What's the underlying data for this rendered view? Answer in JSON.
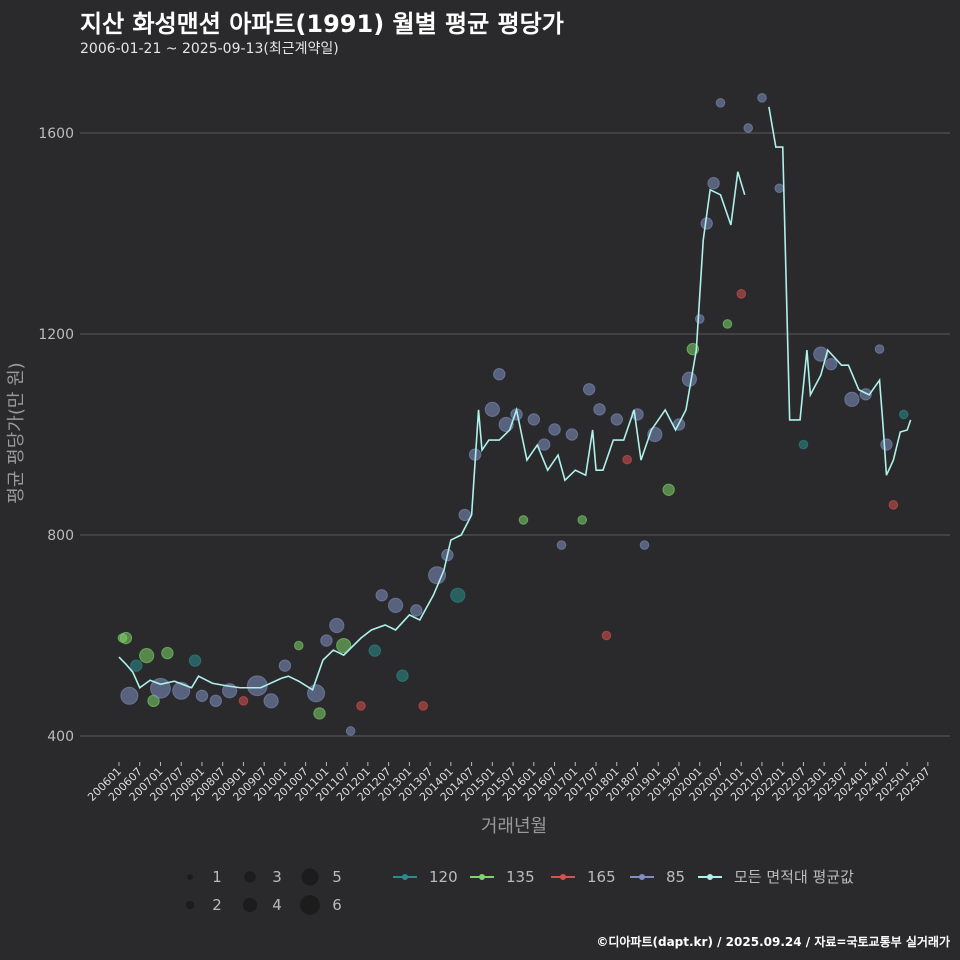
{
  "title": "지산 화성맨션 아파트(1991) 월별 평균 평당가",
  "subtitle": "2006-01-21 ~ 2025-09-13(최근계약일)",
  "footer": "©디아파트(dapt.kr) / 2025.09.24 / 자료=국토교통부 실거래가",
  "colors": {
    "120": "#2a8c8c",
    "135": "#7ed36a",
    "165": "#d95050",
    "85": "#7e8fc0",
    "avg": "#aef0ea",
    "grid": "#5a5a5a"
  },
  "chart_data": {
    "type": "scatter+line",
    "xlabel": "거래년월",
    "ylabel": "평균 평당가(만 원)",
    "ylim": [
      370,
      1700
    ],
    "yticks": [
      400,
      800,
      1200,
      1600
    ],
    "xticks": [
      "200601",
      "200607",
      "200701",
      "200707",
      "200801",
      "200807",
      "200901",
      "200907",
      "201001",
      "201007",
      "201101",
      "201107",
      "201201",
      "201207",
      "201301",
      "201307",
      "201401",
      "201407",
      "201501",
      "201507",
      "201601",
      "201607",
      "201701",
      "201707",
      "201801",
      "201807",
      "201901",
      "201907",
      "202001",
      "202007",
      "202101",
      "202107",
      "202201",
      "202207",
      "202301",
      "202307",
      "202401",
      "202407",
      "202501",
      "202507"
    ],
    "size_legend": [
      "1",
      "2",
      "3",
      "4",
      "5",
      "6"
    ],
    "series_legend": [
      "120",
      "135",
      "165",
      "85",
      "모든 면적대 평균값"
    ],
    "avg_line": {
      "name": "모든 면적대 평균값",
      "points": [
        [
          0,
          557
        ],
        [
          2,
          543
        ],
        [
          4,
          527
        ],
        [
          6,
          496
        ],
        [
          9,
          511
        ],
        [
          12,
          503
        ],
        [
          16,
          509
        ],
        [
          21,
          496
        ],
        [
          23,
          519
        ],
        [
          27,
          505
        ],
        [
          31,
          500
        ],
        [
          35,
          496
        ],
        [
          41,
          496
        ],
        [
          47,
          515
        ],
        [
          49,
          519
        ],
        [
          52,
          509
        ],
        [
          56,
          492
        ],
        [
          59,
          551
        ],
        [
          62,
          571
        ],
        [
          65,
          561
        ],
        [
          70,
          595
        ],
        [
          73,
          611
        ],
        [
          77,
          621
        ],
        [
          80,
          611
        ],
        [
          84,
          641
        ],
        [
          87,
          631
        ],
        [
          91,
          681
        ],
        [
          94,
          730
        ],
        [
          96,
          790
        ],
        [
          99,
          800
        ],
        [
          102,
          840
        ],
        [
          104,
          1049
        ],
        [
          105,
          969
        ],
        [
          107,
          989
        ],
        [
          110,
          989
        ],
        [
          113,
          1009
        ],
        [
          115,
          1049
        ],
        [
          118,
          949
        ],
        [
          121,
          979
        ],
        [
          124,
          929
        ],
        [
          127,
          959
        ],
        [
          129,
          909
        ],
        [
          132,
          929
        ],
        [
          135,
          919
        ],
        [
          137,
          1009
        ],
        [
          138,
          929
        ],
        [
          140,
          929
        ],
        [
          143,
          989
        ],
        [
          146,
          989
        ],
        [
          149,
          1049
        ],
        [
          151,
          949
        ],
        [
          154,
          1009
        ],
        [
          158,
          1049
        ],
        [
          161,
          1009
        ],
        [
          164,
          1049
        ],
        [
          167,
          1168
        ],
        [
          169,
          1387
        ],
        [
          171,
          1487
        ],
        [
          174,
          1477
        ],
        [
          177,
          1417
        ],
        [
          179,
          1523
        ],
        [
          181,
          1477
        ],
        null,
        [
          188,
          1652
        ],
        [
          190,
          1572
        ],
        [
          192,
          1572
        ],
        [
          194,
          1029
        ],
        [
          197,
          1029
        ],
        [
          199,
          1168
        ],
        [
          200,
          1079
        ],
        [
          203,
          1118
        ],
        [
          205,
          1168
        ],
        [
          209,
          1138
        ],
        [
          211,
          1138
        ],
        [
          214,
          1089
        ],
        [
          217,
          1079
        ],
        [
          220,
          1108
        ],
        [
          221,
          1019
        ],
        [
          222,
          919
        ],
        [
          224,
          949
        ],
        [
          226,
          1005
        ],
        [
          228,
          1009
        ],
        [
          229,
          1029
        ]
      ]
    },
    "points": [
      [
        1,
        595,
        "135",
        2
      ],
      [
        2,
        595,
        "135",
        3
      ],
      [
        3,
        480,
        "85",
        5
      ],
      [
        5,
        540,
        "120",
        3
      ],
      [
        8,
        560,
        "135",
        4
      ],
      [
        10,
        470,
        "135",
        3
      ],
      [
        12,
        495,
        "85",
        6
      ],
      [
        14,
        565,
        "135",
        3
      ],
      [
        18,
        490,
        "85",
        5
      ],
      [
        22,
        550,
        "120",
        3
      ],
      [
        24,
        480,
        "85",
        3
      ],
      [
        28,
        470,
        "85",
        3
      ],
      [
        32,
        490,
        "85",
        4
      ],
      [
        36,
        470,
        "165",
        2
      ],
      [
        40,
        500,
        "85",
        6
      ],
      [
        44,
        470,
        "85",
        4
      ],
      [
        48,
        540,
        "85",
        3
      ],
      [
        52,
        580,
        "135",
        2
      ],
      [
        57,
        485,
        "85",
        5
      ],
      [
        58,
        445,
        "135",
        3
      ],
      [
        60,
        590,
        "85",
        3
      ],
      [
        63,
        620,
        "85",
        4
      ],
      [
        65,
        580,
        "135",
        4
      ],
      [
        67,
        410,
        "85",
        2
      ],
      [
        70,
        460,
        "165",
        2
      ],
      [
        74,
        570,
        "120",
        3
      ],
      [
        76,
        680,
        "85",
        3
      ],
      [
        80,
        660,
        "85",
        4
      ],
      [
        82,
        520,
        "120",
        3
      ],
      [
        86,
        650,
        "85",
        3
      ],
      [
        88,
        460,
        "165",
        2
      ],
      [
        92,
        720,
        "85",
        5
      ],
      [
        95,
        760,
        "85",
        3
      ],
      [
        98,
        680,
        "120",
        4
      ],
      [
        100,
        840,
        "85",
        3
      ],
      [
        103,
        960,
        "85",
        3
      ],
      [
        108,
        1050,
        "85",
        4
      ],
      [
        110,
        1120,
        "85",
        3
      ],
      [
        112,
        1020,
        "85",
        4
      ],
      [
        115,
        1040,
        "85",
        3
      ],
      [
        117,
        830,
        "135",
        2
      ],
      [
        120,
        1030,
        "85",
        3
      ],
      [
        123,
        980,
        "85",
        3
      ],
      [
        126,
        1010,
        "85",
        3
      ],
      [
        128,
        780,
        "85",
        2
      ],
      [
        131,
        1000,
        "85",
        3
      ],
      [
        134,
        830,
        "135",
        2
      ],
      [
        136,
        1090,
        "85",
        3
      ],
      [
        139,
        1050,
        "85",
        3
      ],
      [
        141,
        600,
        "165",
        2
      ],
      [
        144,
        1030,
        "85",
        3
      ],
      [
        147,
        950,
        "165",
        2
      ],
      [
        150,
        1040,
        "85",
        3
      ],
      [
        152,
        780,
        "85",
        2
      ],
      [
        155,
        1000,
        "85",
        4
      ],
      [
        159,
        890,
        "135",
        3
      ],
      [
        162,
        1020,
        "85",
        3
      ],
      [
        165,
        1110,
        "85",
        4
      ],
      [
        166,
        1170,
        "135",
        3
      ],
      [
        168,
        1230,
        "85",
        2
      ],
      [
        170,
        1420,
        "85",
        3
      ],
      [
        172,
        1500,
        "85",
        3
      ],
      [
        174,
        1660,
        "85",
        2
      ],
      [
        176,
        1220,
        "135",
        2
      ],
      [
        180,
        1280,
        "165",
        2
      ],
      [
        182,
        1610,
        "85",
        2
      ],
      [
        186,
        1670,
        "85",
        2
      ],
      [
        191,
        1490,
        "85",
        2
      ],
      [
        198,
        980,
        "120",
        2
      ],
      [
        203,
        1160,
        "85",
        4
      ],
      [
        206,
        1140,
        "85",
        3
      ],
      [
        212,
        1070,
        "85",
        4
      ],
      [
        216,
        1080,
        "85",
        3
      ],
      [
        220,
        1170,
        "85",
        2
      ],
      [
        222,
        980,
        "85",
        3
      ],
      [
        224,
        860,
        "165",
        2
      ],
      [
        227,
        1040,
        "120",
        2
      ]
    ]
  }
}
